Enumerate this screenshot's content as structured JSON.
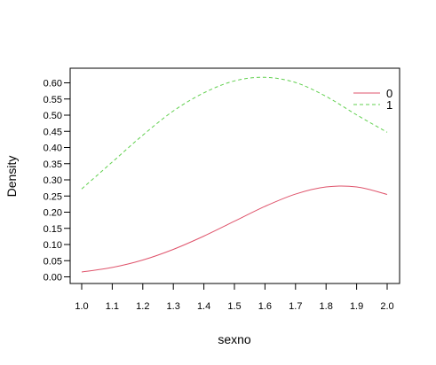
{
  "chart_data": {
    "type": "line",
    "title": "",
    "xlabel": "sexno",
    "ylabel": "Density",
    "xlim": [
      1.0,
      2.0
    ],
    "ylim": [
      0.0,
      0.62
    ],
    "x_ticks": [
      "1.0",
      "1.1",
      "1.2",
      "1.3",
      "1.4",
      "1.5",
      "1.6",
      "1.7",
      "1.8",
      "1.9",
      "2.0"
    ],
    "y_ticks": [
      "0.00",
      "0.05",
      "0.10",
      "0.15",
      "0.20",
      "0.25",
      "0.30",
      "0.35",
      "0.40",
      "0.45",
      "0.50",
      "0.55",
      "0.60"
    ],
    "grid": false,
    "legend_position": "top-right",
    "x": [
      1.0,
      1.1,
      1.2,
      1.3,
      1.4,
      1.5,
      1.6,
      1.7,
      1.8,
      1.9,
      2.0
    ],
    "series": [
      {
        "name": "0",
        "color": "#df536b",
        "dash": "solid",
        "values": [
          0.015,
          0.029,
          0.052,
          0.085,
          0.126,
          0.172,
          0.218,
          0.256,
          0.278,
          0.278,
          0.255
        ]
      },
      {
        "name": "1",
        "color": "#61d04f",
        "dash": "dashed",
        "values": [
          0.272,
          0.355,
          0.438,
          0.513,
          0.569,
          0.606,
          0.617,
          0.601,
          0.558,
          0.501,
          0.447
        ]
      }
    ]
  }
}
